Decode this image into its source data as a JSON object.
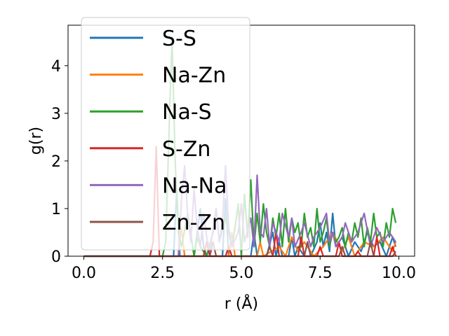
{
  "chart_data": {
    "type": "line",
    "title": "",
    "xlabel": "r (Å)",
    "ylabel": "g(r)",
    "xlim": [
      -0.5,
      10.5
    ],
    "ylim": [
      0,
      4.85
    ],
    "xticks": [
      0.0,
      2.5,
      5.0,
      7.5,
      10.0
    ],
    "xtick_labels": [
      "0.0",
      "2.5",
      "5.0",
      "7.5",
      "10.0"
    ],
    "yticks": [
      0,
      1,
      2,
      3,
      4
    ],
    "ytick_labels": [
      "0",
      "1",
      "2",
      "3",
      "4"
    ],
    "grid": false,
    "legend_position": "top-left",
    "series": [
      {
        "name": "S-S",
        "color": "#1f77b4",
        "x": [
          0,
          2.0,
          2.85,
          2.95,
          3.05,
          3.5,
          3.7,
          3.8,
          3.9,
          4.4,
          4.5,
          4.6,
          5.3,
          5.4,
          5.5,
          5.8,
          6.0,
          6.1,
          6.2,
          6.3,
          6.5,
          6.6,
          6.7,
          6.8,
          7.0,
          7.2,
          7.4,
          7.5,
          7.6,
          7.7,
          7.8,
          7.9,
          8.0,
          8.2,
          8.4,
          8.6,
          8.8,
          9.0,
          9.2,
          9.4,
          9.6,
          9.8,
          9.9
        ],
        "y": [
          0,
          0,
          0,
          1.4,
          0,
          0,
          1.0,
          0.2,
          0,
          0,
          1.2,
          0,
          0,
          0.5,
          0,
          0,
          0.5,
          0,
          0.3,
          0,
          0,
          0.4,
          0,
          0.2,
          0,
          0,
          0.3,
          0.7,
          0.2,
          0.5,
          0.1,
          0.9,
          0.2,
          0.4,
          0,
          0.3,
          0.1,
          0.5,
          0.2,
          0.3,
          0,
          0.4,
          0.2
        ]
      },
      {
        "name": "Na-Zn",
        "color": "#ff7f0e",
        "x": [
          0,
          3.0,
          3.1,
          3.2,
          3.3,
          4.6,
          4.7,
          4.8,
          5.5,
          5.6,
          5.7,
          6.2,
          6.4,
          6.6,
          6.8,
          7.0,
          7.3,
          7.6,
          7.9,
          8.2,
          8.4,
          8.6,
          8.9,
          9.2,
          9.5,
          9.8,
          9.9
        ],
        "y": [
          0,
          0,
          0.6,
          0,
          0,
          0,
          0.5,
          0,
          0,
          0.3,
          0,
          0.2,
          0,
          0.4,
          0.1,
          0.3,
          0,
          0.2,
          0.5,
          0.1,
          0.4,
          0,
          0.3,
          0.2,
          0.4,
          0.1,
          0.3
        ]
      },
      {
        "name": "Na-S",
        "color": "#2ca02c",
        "x": [
          0,
          2.5,
          2.6,
          2.7,
          2.8,
          2.9,
          3.0,
          3.1,
          3.3,
          3.5,
          3.6,
          3.7,
          3.9,
          4.1,
          4.2,
          4.3,
          4.5,
          4.7,
          4.8,
          4.9,
          5.0,
          5.1,
          5.2,
          5.3,
          5.4,
          5.5,
          5.6,
          5.7,
          5.8,
          5.9,
          6.0,
          6.1,
          6.2,
          6.3,
          6.4,
          6.5,
          6.6,
          6.7,
          6.8,
          6.9,
          7.0,
          7.1,
          7.2,
          7.3,
          7.4,
          7.5,
          7.6,
          7.7,
          7.8,
          7.9,
          8.0,
          8.1,
          8.2,
          8.3,
          8.4,
          8.5,
          8.6,
          8.7,
          8.8,
          8.9,
          9.0,
          9.1,
          9.2,
          9.3,
          9.4,
          9.5,
          9.6,
          9.7,
          9.8,
          9.9
        ],
        "y": [
          0,
          0,
          0.3,
          2.5,
          4.6,
          2.0,
          0.5,
          0.2,
          0.9,
          0,
          0.4,
          0.2,
          0,
          0.5,
          1.0,
          0.3,
          0.8,
          0.2,
          0.6,
          1.1,
          0,
          1.3,
          0.4,
          1.6,
          0.2,
          0.9,
          0.3,
          1.1,
          0.5,
          0.2,
          0.8,
          0.4,
          0.9,
          0.2,
          1.0,
          0.3,
          0.8,
          0.5,
          0.7,
          0.2,
          0.9,
          0.4,
          0.6,
          0.2,
          1.0,
          0.3,
          0.5,
          0.8,
          0.2,
          0.5,
          0.3,
          0.4,
          0.6,
          0.2,
          0.5,
          0.3,
          0.7,
          0.4,
          0.8,
          0.2,
          0.6,
          0.3,
          0.9,
          0.4,
          0.5,
          0.2,
          0.7,
          0.4,
          1.0,
          0.7
        ]
      },
      {
        "name": "S-Zn",
        "color": "#d62728",
        "x": [
          0,
          2.1,
          2.2,
          2.3,
          2.4,
          3.8,
          3.9,
          4.0,
          4.5,
          4.6,
          4.7,
          6.0,
          6.1,
          6.2,
          6.8,
          6.9,
          7.0,
          7.4,
          7.5,
          7.6,
          8.0,
          8.1,
          8.2,
          8.6,
          8.7,
          8.8,
          9.2,
          9.3,
          9.4,
          9.7,
          9.8,
          9.9
        ],
        "y": [
          0,
          0,
          0.3,
          2.3,
          0,
          0,
          0.3,
          0,
          0,
          0.2,
          0,
          0,
          0.5,
          0,
          0,
          0.4,
          0,
          0,
          0.2,
          0,
          0,
          0.3,
          0,
          0,
          0.1,
          0,
          0,
          0.4,
          0,
          0,
          0.2,
          0
        ]
      },
      {
        "name": "Na-Na",
        "color": "#9467bd",
        "x": [
          0,
          3.0,
          3.1,
          3.2,
          3.3,
          3.4,
          3.5,
          3.6,
          3.7,
          3.8,
          3.9,
          4.0,
          4.2,
          4.3,
          4.4,
          4.5,
          4.6,
          4.7,
          4.9,
          5.0,
          5.1,
          5.3,
          5.4,
          5.5,
          5.6,
          5.7,
          5.8,
          5.9,
          6.0,
          6.2,
          6.3,
          6.5,
          6.6,
          6.7,
          6.9,
          7.0,
          7.2,
          7.3,
          7.5,
          7.7,
          7.8,
          7.9,
          8.0,
          8.2,
          8.3,
          8.5,
          8.7,
          8.9,
          9.1,
          9.3,
          9.5,
          9.7,
          9.9
        ],
        "y": [
          0,
          0,
          1.2,
          1.9,
          0.8,
          0.3,
          1.4,
          0.6,
          0.2,
          0.9,
          0.4,
          0.1,
          1.0,
          0.3,
          0.7,
          1.9,
          0.6,
          0.2,
          0.5,
          1.1,
          0.3,
          0.8,
          0.2,
          1.7,
          0.5,
          0.4,
          1.0,
          0.2,
          0.7,
          0.3,
          0.9,
          0.4,
          0.8,
          0.2,
          0.5,
          0.7,
          0.2,
          0.4,
          0.6,
          0.9,
          0.3,
          0.5,
          0.2,
          0.4,
          0.7,
          0.3,
          0.5,
          0.9,
          0.2,
          0.6,
          0.3,
          0.5,
          0.3
        ]
      },
      {
        "name": "Zn-Zn",
        "color": "#8c564b",
        "x": [
          0,
          4.0,
          4.1,
          4.2,
          5.8,
          5.9,
          6.0,
          7.0,
          7.1,
          7.2,
          8.1,
          8.2,
          8.3,
          9.0,
          9.1,
          9.2,
          9.8,
          9.9
        ],
        "y": [
          0,
          0,
          0.3,
          0,
          0,
          0.2,
          0,
          0,
          0.3,
          0,
          0,
          0.2,
          0,
          0,
          0.3,
          0,
          0,
          0.1
        ]
      }
    ]
  }
}
